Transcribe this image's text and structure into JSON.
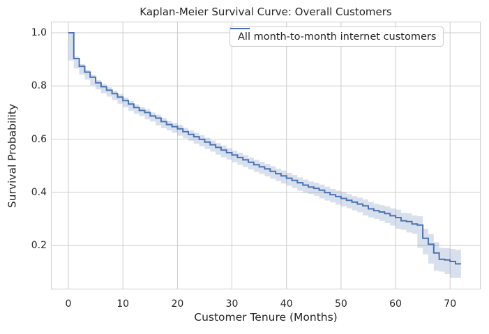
{
  "figure": {
    "background": "#ffffff"
  },
  "chart_data": {
    "type": "line",
    "variant": "kaplan-meier-step-with-confidence-band",
    "title": "Kaplan-Meier Survival Curve: Overall Customers",
    "xlabel": "Customer Tenure (Months)",
    "ylabel": "Survival Probability",
    "grid": true,
    "legend": {
      "position": "upper right",
      "entries": [
        {
          "label": "All month-to-month internet customers",
          "color": "#4c72b0"
        }
      ]
    },
    "xlim": [
      -3.2,
      75.6
    ],
    "ylim": [
      0.035,
      1.042
    ],
    "xticks": [
      0,
      10,
      20,
      30,
      40,
      50,
      60,
      70
    ],
    "yticks": [
      0.2,
      0.4,
      0.6,
      0.8,
      1.0
    ],
    "colors": {
      "line": "#4c72b0",
      "band": "#4c72b0",
      "band_alpha": 0.22,
      "grid": "#cccccc",
      "spine": "#cccccc",
      "text": "#262626",
      "background": "#ffffff"
    },
    "series": [
      {
        "name": "All month-to-month internet customers",
        "x": [
          0,
          1,
          2,
          3,
          4,
          5,
          6,
          7,
          8,
          9,
          10,
          11,
          12,
          13,
          14,
          15,
          16,
          17,
          18,
          19,
          20,
          21,
          22,
          23,
          24,
          25,
          26,
          27,
          28,
          29,
          30,
          31,
          32,
          33,
          34,
          35,
          36,
          37,
          38,
          39,
          40,
          41,
          42,
          43,
          44,
          45,
          46,
          47,
          48,
          49,
          50,
          51,
          52,
          53,
          54,
          55,
          56,
          57,
          58,
          59,
          60,
          61,
          62,
          63,
          64,
          65,
          66,
          67,
          68,
          69,
          70,
          71,
          72
        ],
        "survival": [
          1.0,
          0.903,
          0.874,
          0.852,
          0.833,
          0.812,
          0.797,
          0.784,
          0.771,
          0.758,
          0.745,
          0.732,
          0.719,
          0.708,
          0.7,
          0.687,
          0.679,
          0.666,
          0.655,
          0.647,
          0.639,
          0.628,
          0.618,
          0.609,
          0.599,
          0.589,
          0.579,
          0.569,
          0.559,
          0.549,
          0.54,
          0.531,
          0.522,
          0.513,
          0.504,
          0.496,
          0.488,
          0.479,
          0.47,
          0.462,
          0.453,
          0.445,
          0.436,
          0.427,
          0.42,
          0.415,
          0.408,
          0.399,
          0.391,
          0.384,
          0.377,
          0.37,
          0.363,
          0.356,
          0.349,
          0.338,
          0.331,
          0.326,
          0.32,
          0.312,
          0.305,
          0.293,
          0.29,
          0.281,
          0.277,
          0.227,
          0.205,
          0.172,
          0.148,
          0.146,
          0.14,
          0.131,
          0.131
        ],
        "ci_upper": [
          1.0,
          0.91,
          0.882,
          0.861,
          0.842,
          0.822,
          0.807,
          0.795,
          0.782,
          0.769,
          0.757,
          0.744,
          0.731,
          0.721,
          0.713,
          0.7,
          0.692,
          0.68,
          0.669,
          0.661,
          0.654,
          0.643,
          0.633,
          0.624,
          0.615,
          0.605,
          0.595,
          0.585,
          0.576,
          0.566,
          0.557,
          0.549,
          0.54,
          0.531,
          0.522,
          0.515,
          0.507,
          0.498,
          0.489,
          0.482,
          0.473,
          0.465,
          0.456,
          0.448,
          0.441,
          0.436,
          0.429,
          0.421,
          0.413,
          0.406,
          0.4,
          0.393,
          0.386,
          0.38,
          0.373,
          0.363,
          0.356,
          0.352,
          0.347,
          0.34,
          0.335,
          0.323,
          0.321,
          0.313,
          0.31,
          0.263,
          0.243,
          0.212,
          0.191,
          0.19,
          0.187,
          0.184,
          0.184
        ],
        "ci_lower": [
          1.0,
          0.896,
          0.866,
          0.843,
          0.824,
          0.802,
          0.787,
          0.773,
          0.76,
          0.747,
          0.733,
          0.72,
          0.707,
          0.695,
          0.687,
          0.674,
          0.666,
          0.652,
          0.641,
          0.633,
          0.624,
          0.613,
          0.603,
          0.594,
          0.583,
          0.573,
          0.563,
          0.553,
          0.542,
          0.532,
          0.523,
          0.513,
          0.504,
          0.495,
          0.486,
          0.477,
          0.469,
          0.46,
          0.451,
          0.442,
          0.433,
          0.425,
          0.416,
          0.406,
          0.399,
          0.394,
          0.387,
          0.377,
          0.369,
          0.362,
          0.354,
          0.347,
          0.34,
          0.332,
          0.325,
          0.313,
          0.306,
          0.3,
          0.293,
          0.284,
          0.275,
          0.263,
          0.259,
          0.249,
          0.244,
          0.191,
          0.167,
          0.132,
          0.105,
          0.102,
          0.093,
          0.078,
          0.078
        ]
      }
    ]
  }
}
